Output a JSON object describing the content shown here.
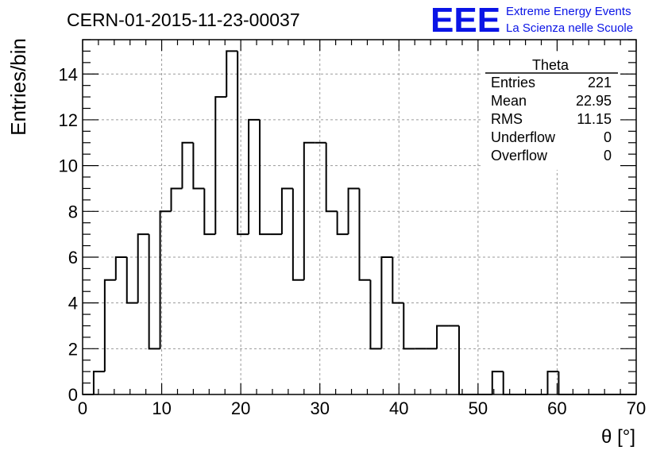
{
  "header": {
    "run_title": "CERN-01-2015-11-23-00037",
    "logo_text": "EEE",
    "logo_line1": "Extreme Energy Events",
    "logo_line2": "La Scienza nelle Scuole",
    "logo_color": "#0a14e6"
  },
  "stats_box": {
    "title": "Theta",
    "rows": [
      {
        "label": "Entries",
        "value": "221"
      },
      {
        "label": "Mean",
        "value": "22.95"
      },
      {
        "label": "RMS",
        "value": "11.15"
      },
      {
        "label": "Underflow",
        "value": "0"
      },
      {
        "label": "Overflow",
        "value": "0"
      }
    ]
  },
  "chart_data": {
    "type": "histogram",
    "title": "CERN-01-2015-11-23-00037",
    "xlabel": "θ [°]",
    "ylabel": "Entries/bin",
    "xlim": [
      0,
      70
    ],
    "ylim": [
      0,
      15.5
    ],
    "grid": true,
    "line_color": "#000000",
    "x_ticks": [
      0,
      10,
      20,
      30,
      40,
      50,
      60,
      70
    ],
    "y_ticks": [
      0,
      2,
      4,
      6,
      8,
      10,
      12,
      14
    ],
    "bin_width": 1.4,
    "bin_edges_start": 0,
    "values": [
      0,
      1,
      5,
      6,
      4,
      7,
      2,
      8,
      9,
      11,
      9,
      7,
      13,
      15,
      7,
      12,
      7,
      7,
      9,
      5,
      11,
      11,
      8,
      7,
      9,
      5,
      2,
      6,
      4,
      2,
      2,
      2,
      3,
      3,
      0,
      0,
      0,
      1,
      0,
      0,
      0,
      0,
      1,
      0,
      0,
      0,
      0,
      0,
      0,
      0
    ]
  }
}
